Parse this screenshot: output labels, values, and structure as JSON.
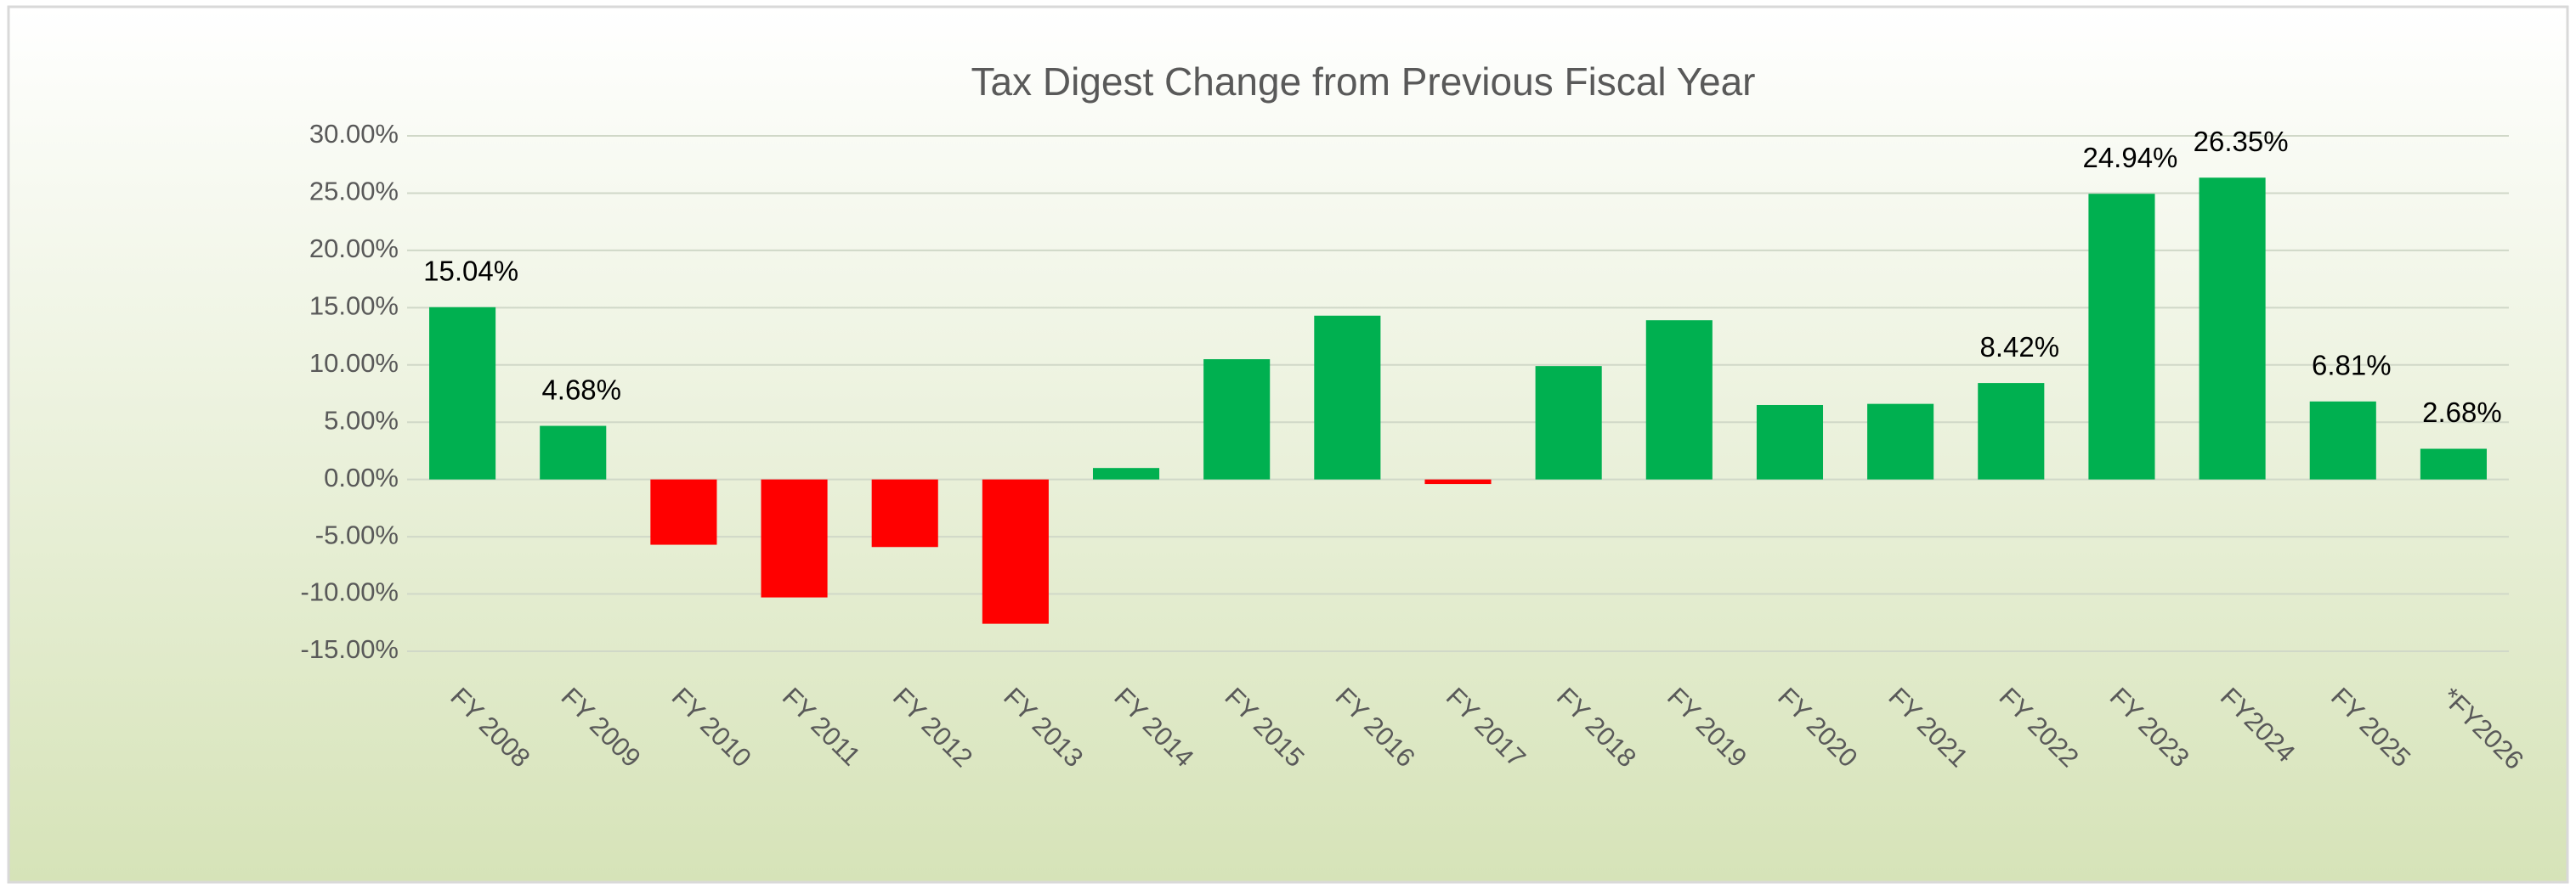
{
  "chart_data": {
    "type": "bar",
    "title": "Tax Digest Change from Previous Fiscal Year",
    "categories": [
      "FY 2008",
      "FY 2009",
      "FY 2010",
      "FY 2011",
      "FY 2012",
      "FY 2013",
      "FY 2014",
      "FY 2015",
      "FY 2016",
      "FY 2017",
      "FY 2018",
      "FY 2019",
      "FY 2020",
      "FY 2021",
      "FY 2022",
      "FY 2023",
      "FY2024",
      "FY 2025",
      "*FY2026"
    ],
    "values": [
      15.04,
      4.68,
      -5.7,
      -10.3,
      -5.9,
      -12.6,
      1.0,
      10.5,
      14.3,
      -0.4,
      9.9,
      13.9,
      6.5,
      6.6,
      8.42,
      24.94,
      26.35,
      6.81,
      2.68
    ],
    "value_labels": [
      "15.04%",
      "4.68%",
      null,
      null,
      null,
      null,
      null,
      null,
      null,
      null,
      null,
      null,
      null,
      null,
      "8.42%",
      "24.94%",
      "26.35%",
      "6.81%",
      "2.68%"
    ],
    "color": "#00b050",
    "negative_color": "#ff0000",
    "ylim": [
      -15,
      30
    ],
    "yticks": [
      {
        "value": -15,
        "label": "-15.00%"
      },
      {
        "value": -10,
        "label": "-10.00%"
      },
      {
        "value": -5,
        "label": "-5.00%"
      },
      {
        "value": 0,
        "label": "0.00%"
      },
      {
        "value": 5,
        "label": "5.00%"
      },
      {
        "value": 10,
        "label": "10.00%"
      },
      {
        "value": 15,
        "label": "15.00%"
      },
      {
        "value": 20,
        "label": "20.00%"
      },
      {
        "value": 25,
        "label": "25.00%"
      },
      {
        "value": 30,
        "label": "30.00%"
      }
    ],
    "grid": true
  }
}
